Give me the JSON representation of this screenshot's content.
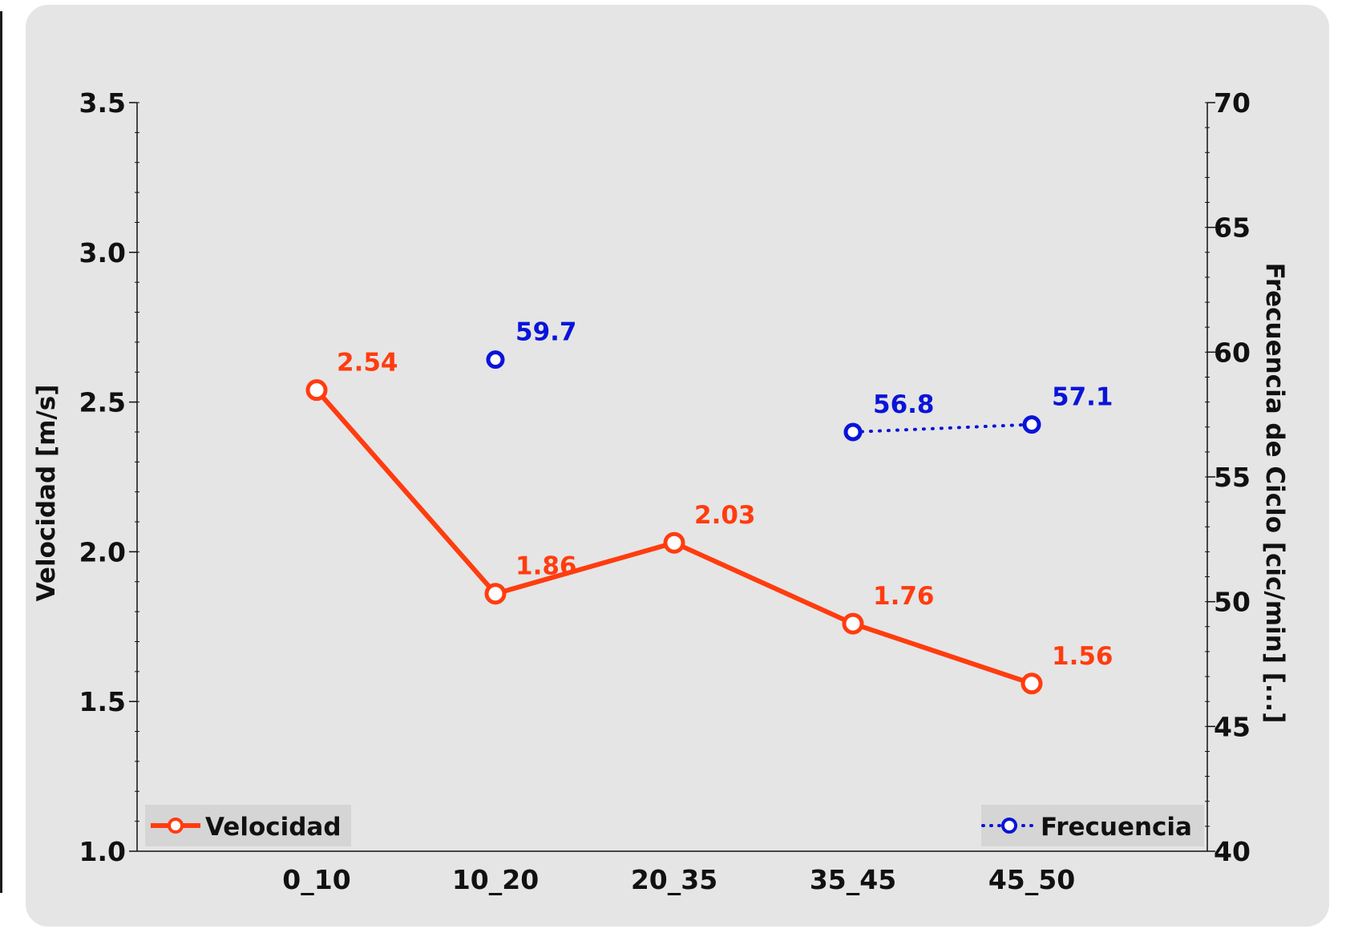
{
  "chart_data": {
    "type": "line",
    "categories": [
      "0_10",
      "10_20",
      "20_35",
      "35_45",
      "45_50"
    ],
    "y_left": {
      "label": "Velocidad [m/s]",
      "range": [
        1.0,
        3.5
      ],
      "ticks": [
        "1.0",
        "1.5",
        "2.0",
        "2.5",
        "3.0",
        "3.5"
      ]
    },
    "y_right": {
      "label": "Frecuencia de Ciclo [cic/min] [...]",
      "range": [
        40,
        70
      ],
      "ticks": [
        "40",
        "45",
        "50",
        "55",
        "60",
        "65",
        "70"
      ]
    },
    "series": [
      {
        "name": "Velocidad",
        "axis": "left",
        "color": "#ff3c0f",
        "line_style": "solid",
        "marker": "open-circle",
        "values": [
          2.54,
          1.86,
          2.03,
          1.76,
          1.56
        ],
        "labels": [
          "2.54",
          "1.86",
          "2.03",
          "1.76",
          "1.56"
        ]
      },
      {
        "name": "Frecuencia",
        "axis": "right",
        "color": "#0a14d8",
        "line_style": "dotted",
        "marker": "open-circle",
        "values": [
          null,
          59.7,
          null,
          56.8,
          57.1
        ],
        "labels": [
          "",
          "59.7",
          "",
          "56.8",
          "57.1"
        ]
      }
    ],
    "legend": [
      {
        "name": "Velocidad",
        "position": "bottom-left"
      },
      {
        "name": "Frecuencia",
        "position": "bottom-right"
      }
    ],
    "grid": false
  }
}
